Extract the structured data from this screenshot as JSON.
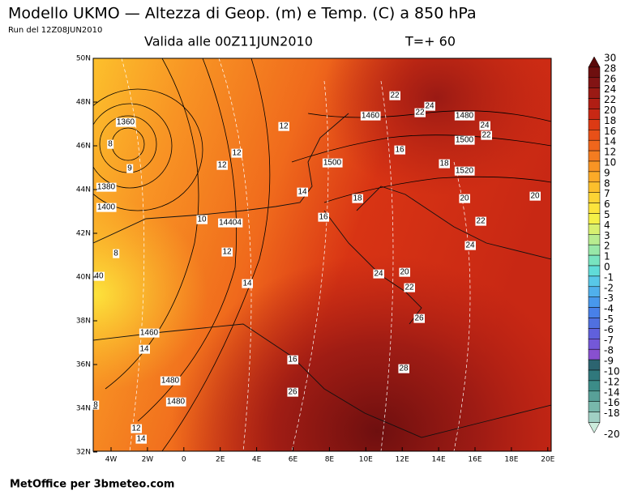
{
  "header": {
    "title": "Modello UKMO — Altezza di Geop. (m) e Temp. (C) a 850 hPa",
    "run": "Run del 12Z08JUN2010",
    "valid": "Valida alle 00Z11JUN2010",
    "step": "T=+ 60"
  },
  "map": {
    "lat_labels": [
      "50N",
      "48N",
      "46N",
      "44N",
      "42N",
      "40N",
      "38N",
      "36N",
      "34N",
      "32N"
    ],
    "lon_labels": [
      "4W",
      "2W",
      "0",
      "2E",
      "4E",
      "6E",
      "8E",
      "10E",
      "12E",
      "14E",
      "16E",
      "18E",
      "20E"
    ],
    "contour_labels": [
      "1360",
      "8",
      "9",
      "1380",
      "1400",
      "8",
      "40",
      "12",
      "12",
      "12",
      "14",
      "1500",
      "10",
      "14404",
      "12",
      "14",
      "16",
      "18",
      "1460",
      "22",
      "22",
      "24",
      "1480",
      "24",
      "22",
      "1500",
      "16",
      "18",
      "1520",
      "20",
      "22",
      "20",
      "24",
      "24",
      "20",
      "22",
      "26",
      "28",
      "1460",
      "14",
      "16",
      "1480",
      "1480",
      "12",
      "14",
      "26",
      "8"
    ]
  },
  "colorbar": {
    "levels": [
      "30",
      "28",
      "26",
      "24",
      "22",
      "20",
      "18",
      "16",
      "14",
      "12",
      "10",
      "9",
      "8",
      "7",
      "6",
      "5",
      "4",
      "3",
      "2",
      "1",
      "0",
      "-1",
      "-2",
      "-3",
      "-4",
      "-5",
      "-6",
      "-7",
      "-8",
      "-9",
      "-10",
      "-12",
      "-14",
      "-16",
      "-18",
      "-20"
    ],
    "colors": [
      "#5a0a0a",
      "#6e0f0f",
      "#821414",
      "#9a1a14",
      "#b01e14",
      "#c82814",
      "#dc3a14",
      "#e85018",
      "#f0661c",
      "#f47c20",
      "#f89424",
      "#fcaa28",
      "#fcc02c",
      "#fcd434",
      "#fce43c",
      "#f4f048",
      "#d8f070",
      "#b8ec90",
      "#98e8a8",
      "#78e4c0",
      "#60dcd8",
      "#58c8e8",
      "#50b0ec",
      "#4898ec",
      "#4880e8",
      "#5070e0",
      "#6060dc",
      "#7458d8",
      "#8850d0",
      "#2c6470",
      "#30787c",
      "#3c8c88",
      "#58a098",
      "#78b8ac",
      "#a0d0c4",
      "#ccecdc"
    ]
  },
  "footer": "MetOffice per 3bmeteo.com"
}
